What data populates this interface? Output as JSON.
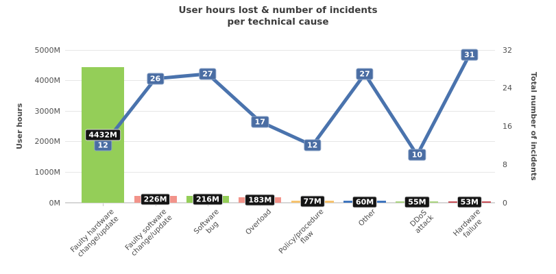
{
  "chart": {
    "title_line1": "User hours lost & number of incidents",
    "title_line2": "per technical cause"
  },
  "chart_data": {
    "type": "combo-bar-line",
    "title": "User hours lost & number of incidents per technical cause",
    "grid": "horizontal",
    "legend": false,
    "categories": [
      "Faulty hardware change/update",
      "Faulty software change/update",
      "Software bug",
      "Overload",
      "Policy/procedure flaw",
      "Other",
      "DDoS attack",
      "Hardware failure"
    ],
    "category_label_lines": [
      [
        "Faulty hardware",
        "change/update"
      ],
      [
        "Faulty software",
        "change/update"
      ],
      [
        "Software",
        "bug"
      ],
      [
        "Overload"
      ],
      [
        "Policy/procedure",
        "flaw"
      ],
      [
        "Other"
      ],
      [
        "DDoS",
        "attack"
      ],
      [
        "Hardware",
        "failure"
      ]
    ],
    "series": [
      {
        "name": "User hours lost",
        "type": "bar",
        "axis": "left",
        "unit": "M",
        "values": [
          4432,
          226,
          216,
          183,
          77,
          60,
          55,
          53
        ],
        "labels": [
          "4432M",
          "226M",
          "216M",
          "183M",
          "77M",
          "60M",
          "55M",
          "53M"
        ],
        "bar_colors": [
          "#94ce58",
          "#f2938a",
          "#94ce58",
          "#f2938a",
          "#f6c36f",
          "#3e75bf",
          "#a8d37d",
          "#c74a53"
        ],
        "label_bg": "#141414",
        "label_text_color": "#ffffff"
      },
      {
        "name": "Total number of incidents",
        "type": "line",
        "axis": "right",
        "values": [
          12,
          26,
          27,
          17,
          12,
          27,
          10,
          31
        ],
        "color": "#4a73ad",
        "label_bg": "#4a6da3",
        "label_text_color": "#ffffff"
      }
    ],
    "y_axis_left": {
      "title": "User hours",
      "min": 0,
      "max": 5000,
      "tick_interval": 1000,
      "tick_labels": [
        "0M",
        "1000M",
        "2000M",
        "3000M",
        "4000M",
        "5000M"
      ]
    },
    "y_axis_right": {
      "title": "Total number of incidents",
      "min": 0,
      "max": 32,
      "tick_interval": 8,
      "tick_labels": [
        "0",
        "8",
        "16",
        "24",
        "32"
      ]
    }
  }
}
